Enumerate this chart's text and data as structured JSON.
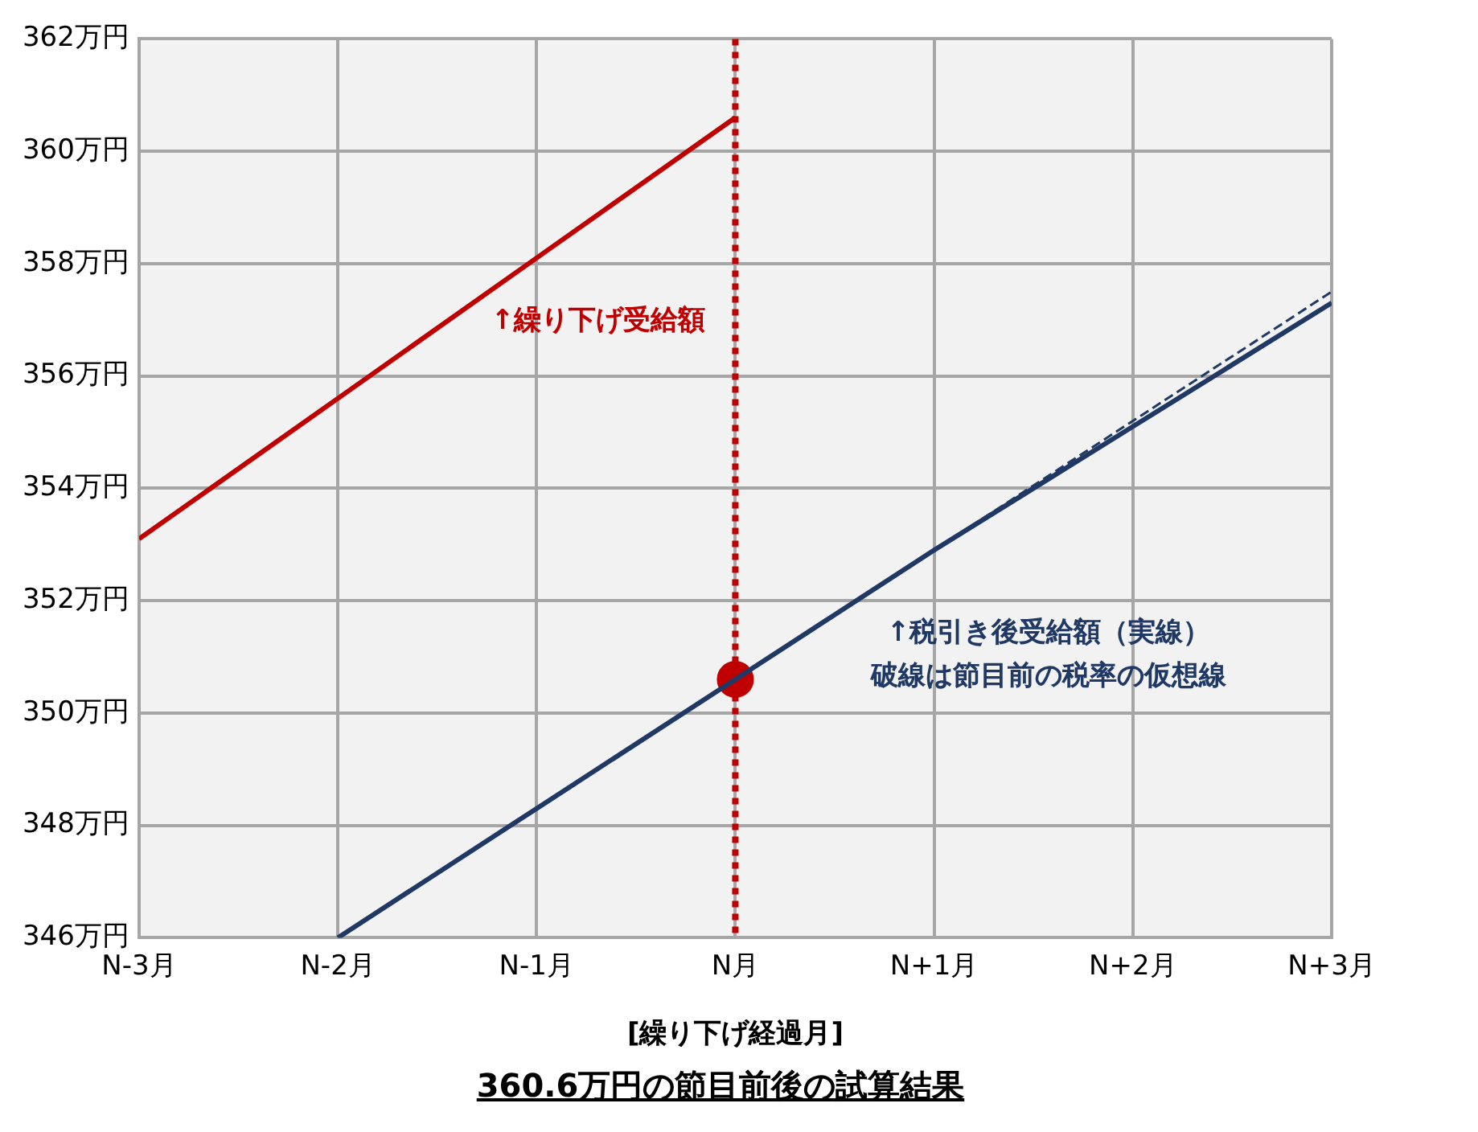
{
  "chart_data": {
    "type": "line",
    "title": "360.6万円の節目前後の試算結果",
    "xlabel": "[繰り下げ経過月]",
    "categories": [
      "N-3月",
      "N-2月",
      "N-1月",
      "N月",
      "N+1月",
      "N+2月",
      "N+3月"
    ],
    "ylim": [
      346,
      362
    ],
    "yticks": [
      {
        "value": 346,
        "label": "346万円"
      },
      {
        "value": 348,
        "label": "348万円"
      },
      {
        "value": 350,
        "label": "350万円"
      },
      {
        "value": 352,
        "label": "352万円"
      },
      {
        "value": 354,
        "label": "354万円"
      },
      {
        "value": 356,
        "label": "356万円"
      },
      {
        "value": 358,
        "label": "358万円"
      },
      {
        "value": 360,
        "label": "360万円"
      },
      {
        "value": 362,
        "label": "362万円"
      }
    ],
    "grid": true,
    "annotations": [
      "破線は節目前の税率の仮想線"
    ],
    "series": [
      {
        "name": "↑繰り下げ受給額",
        "color": "#c00000",
        "values": [
          353.1,
          355.6,
          358.1,
          360.6,
          null,
          null,
          null
        ],
        "marker": "none",
        "line_style": "solid"
      },
      {
        "name": "↑税引き後受給額（実線）",
        "color": "#1f3864",
        "values": [
          null,
          346,
          348.3,
          350.6,
          352.9,
          355.1,
          357.3
        ],
        "marker": "none",
        "line_style": "solid"
      },
      {
        "color": "#1f3864",
        "values": [
          null,
          null,
          null,
          null,
          352.9,
          355.2,
          357.5
        ],
        "marker": "none",
        "line_style": "dashed"
      },
      {
        "type": "scatter",
        "color": "#c00000",
        "values": [
          null,
          null,
          null,
          350.6,
          null,
          null,
          null
        ],
        "marker": "circle"
      }
    ],
    "ref_lines": [
      {
        "axis": "x",
        "value": "N月",
        "color": "#c00000",
        "line_style": "dotted"
      }
    ]
  }
}
